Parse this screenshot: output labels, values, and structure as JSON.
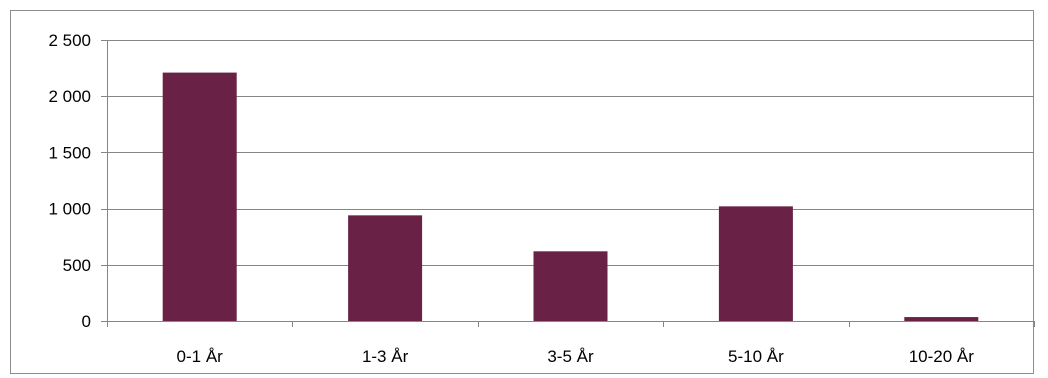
{
  "chart_data": {
    "type": "bar",
    "title": "",
    "xlabel": "",
    "ylabel": "",
    "categories": [
      "0-1 År",
      "1-3 År",
      "3-5 År",
      "5-10 År",
      "10-20 År"
    ],
    "values": [
      2210,
      940,
      620,
      1020,
      35
    ],
    "ylim": [
      0,
      2500
    ],
    "yticks": [
      0,
      500,
      1000,
      1500,
      2000,
      2500
    ],
    "ytick_labels": [
      "0",
      "500",
      "1 000",
      "1 500",
      "2 000",
      "2 500"
    ],
    "grid": true,
    "legend": "none",
    "colors": {
      "bar": "#692246",
      "grid": "#868686",
      "axis": "#868686",
      "text": "#000000"
    }
  }
}
